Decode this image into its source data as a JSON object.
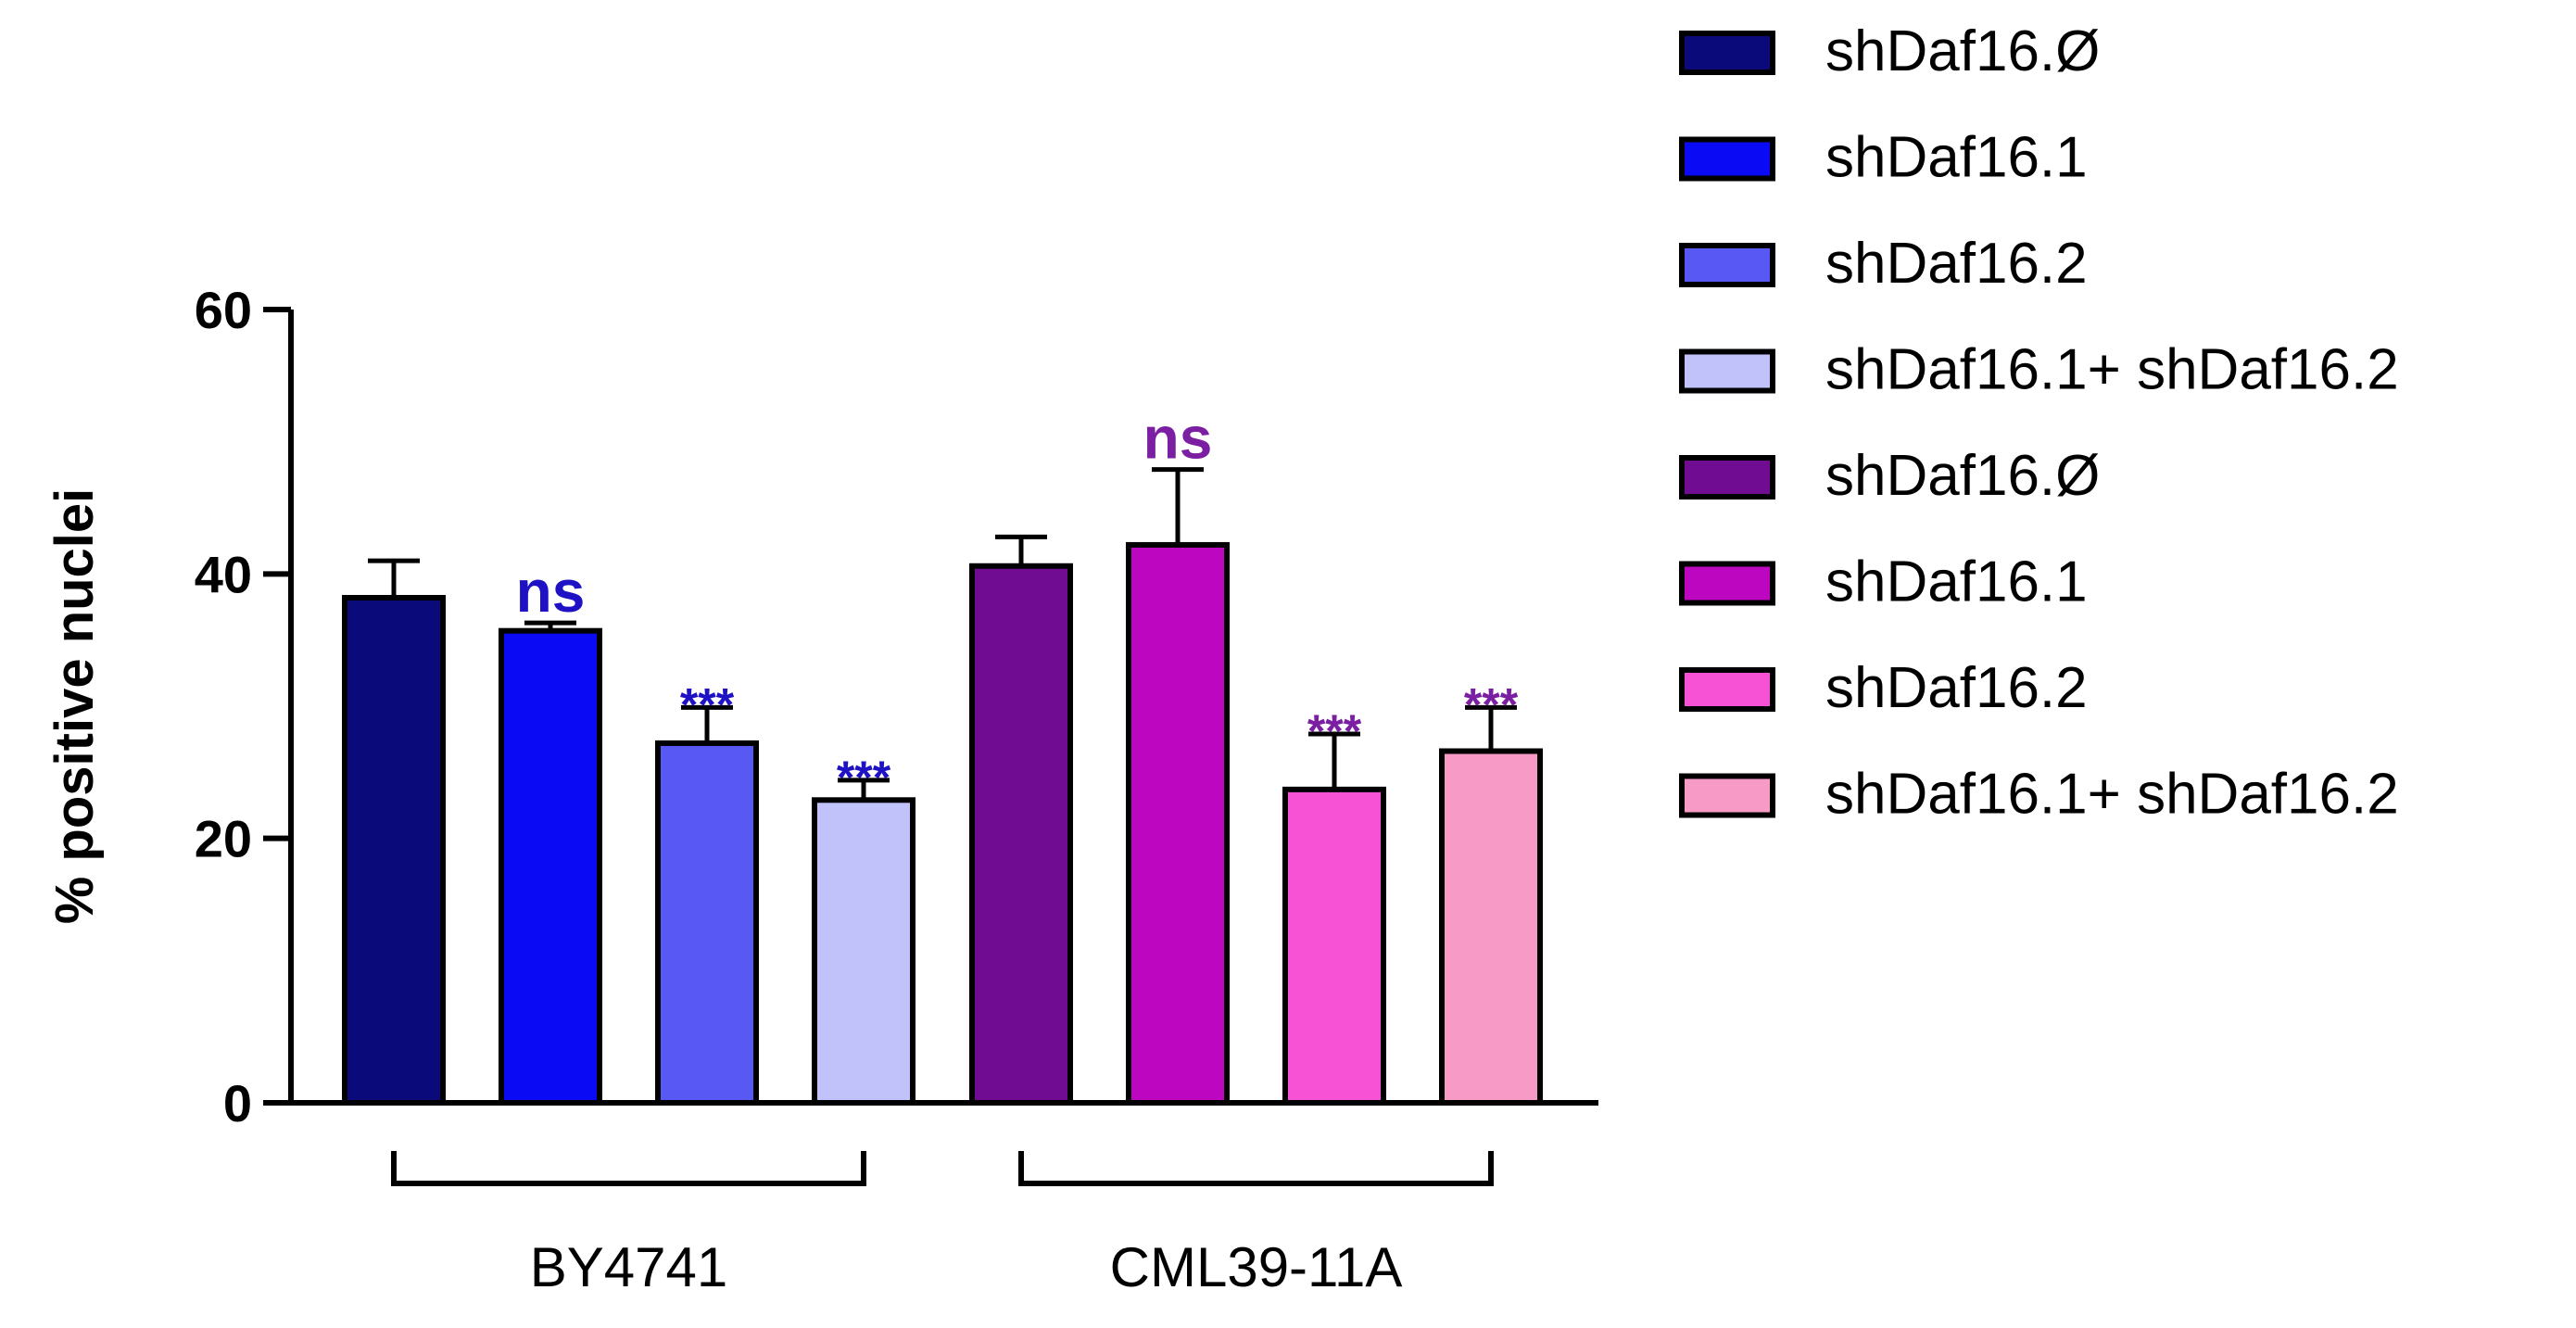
{
  "chart_data": {
    "type": "bar",
    "title": "",
    "xlabel": "",
    "ylabel": "% positive nuclei",
    "ylim": [
      0,
      60
    ],
    "yticks": [
      0,
      20,
      40,
      60
    ],
    "groups": [
      {
        "name": "BY4741",
        "bars": [
          0,
          1,
          2,
          3
        ]
      },
      {
        "name": "CML39-11A",
        "bars": [
          4,
          5,
          6,
          7
        ]
      }
    ],
    "bars": [
      {
        "series": "shDaf16.Ø",
        "group": "BY4741",
        "value": 38.2,
        "error": 2.8,
        "color": "#0b0a7a",
        "annotation": ""
      },
      {
        "series": "shDaf16.1",
        "group": "BY4741",
        "value": 35.7,
        "error": 0.6,
        "color": "#0a0bf4",
        "annotation": "ns"
      },
      {
        "series": "shDaf16.2",
        "group": "BY4741",
        "value": 27.2,
        "error": 2.7,
        "color": "#5858f5",
        "annotation": "***"
      },
      {
        "series": "shDaf16.1+ shDaf16.2",
        "group": "BY4741",
        "value": 22.9,
        "error": 1.5,
        "color": "#c2c2fb",
        "annotation": "***"
      },
      {
        "series": "shDaf16.Ø",
        "group": "CML39-11A",
        "value": 40.6,
        "error": 2.2,
        "color": "#700c91",
        "annotation": ""
      },
      {
        "series": "shDaf16.1",
        "group": "CML39-11A",
        "value": 42.2,
        "error": 5.7,
        "color": "#bc06bf",
        "annotation": "ns"
      },
      {
        "series": "shDaf16.2",
        "group": "CML39-11A",
        "value": 23.7,
        "error": 4.2,
        "color": "#f752d6",
        "annotation": "***"
      },
      {
        "series": "shDaf16.1+ shDaf16.2",
        "group": "CML39-11A",
        "value": 26.6,
        "error": 3.3,
        "color": "#f79ac6",
        "annotation": "***"
      }
    ],
    "annotation_colors": {
      "BY4741": "#1f12c4",
      "CML39-11A": "#7b1fa2"
    },
    "legend": [
      {
        "label": "shDaf16.Ø",
        "color": "#0b0a7a"
      },
      {
        "label": "shDaf16.1",
        "color": "#0a0bf4"
      },
      {
        "label": "shDaf16.2",
        "color": "#5858f5"
      },
      {
        "label": "shDaf16.1+ shDaf16.2",
        "color": "#c2c2fb"
      },
      {
        "label": "shDaf16.Ø",
        "color": "#700c91"
      },
      {
        "label": "shDaf16.1",
        "color": "#bc06bf"
      },
      {
        "label": "shDaf16.2",
        "color": "#f752d6"
      },
      {
        "label": "shDaf16.1+ shDaf16.2",
        "color": "#f79ac6"
      }
    ],
    "legend_position": "right"
  }
}
